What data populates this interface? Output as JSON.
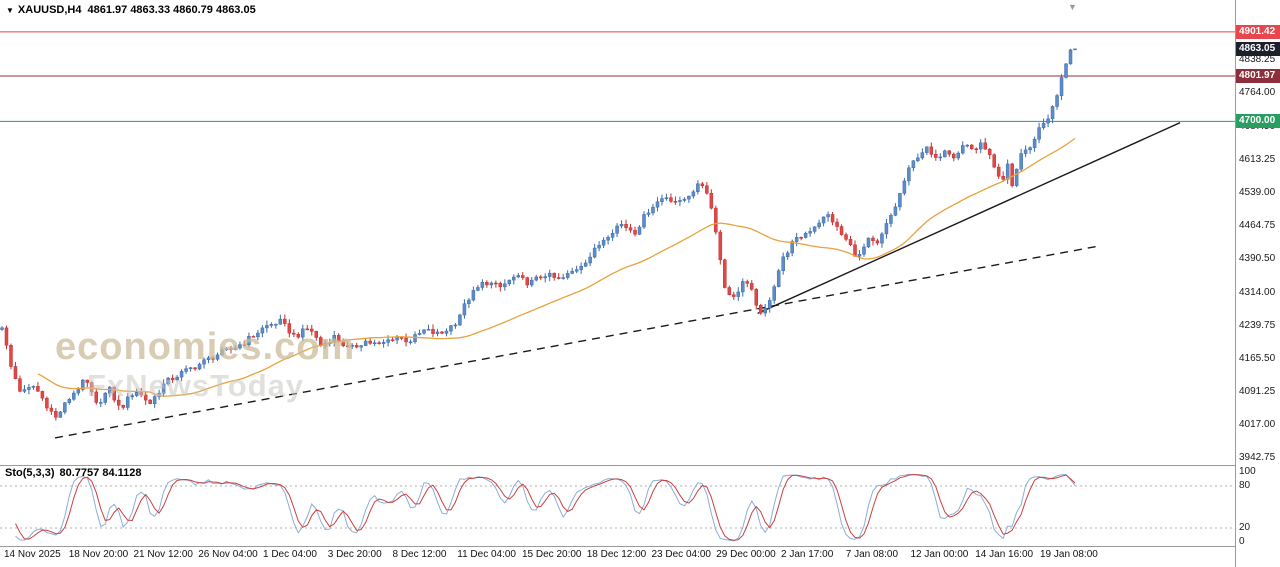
{
  "icons": {
    "dropdown": "▼",
    "shift_marker": "▼"
  },
  "header": {
    "symbol": "XAUUSD,H4",
    "ohlc": "4861.97 4863.33 4860.79 4863.05"
  },
  "watermark": {
    "line1": "economies.com",
    "line2": "FxNewsToday"
  },
  "indicator": {
    "label": "Sto(5,3,3)",
    "values": "80.7757 84.1128"
  },
  "chart_data": {
    "type": "candlestick",
    "symbol": "XAUUSD",
    "timeframe": "H4",
    "title": "XAUUSD,H4",
    "current": {
      "open": 4861.97,
      "high": 4863.33,
      "low": 4860.79,
      "close": 4863.05
    },
    "ylim": [
      3942.75,
      4955
    ],
    "y_ticks": [
      4838.25,
      4764.0,
      4687.5,
      4613.25,
      4539.0,
      4464.75,
      4390.5,
      4314.0,
      4239.75,
      4165.5,
      4091.25,
      4017.0,
      3942.75
    ],
    "x_labels": [
      "14 Nov 2025",
      "18 Nov 20:00",
      "21 Nov 12:00",
      "26 Nov 04:00",
      "1 Dec 04:00",
      "3 Dec 20:00",
      "8 Dec 12:00",
      "11 Dec 04:00",
      "15 Dec 20:00",
      "18 Dec 12:00",
      "23 Dec 04:00",
      "29 Dec 00:00",
      "2 Jan 17:00",
      "7 Jan 08:00",
      "12 Jan 00:00",
      "14 Jan 16:00",
      "19 Jan 08:00"
    ],
    "price_lines": [
      {
        "price": 4901.42,
        "label": "4901.42",
        "line_color": "#e6474f",
        "badge_color": "#e6474f"
      },
      {
        "price": 4863.05,
        "label": "4863.05",
        "line_color": null,
        "badge_color": "#1d1f2a",
        "is_current": true
      },
      {
        "price": 4801.97,
        "label": "4801.97",
        "line_color": "#8c2f3a",
        "badge_color": "#8c2f3a"
      },
      {
        "price": 4700.0,
        "label": "4700.00",
        "line_color": "#2a9e62",
        "badge_color": "#2a9e62"
      }
    ],
    "trendlines": [
      {
        "style": "dashed",
        "t1": 0.0445,
        "p1": 3988,
        "t2": 0.89,
        "p2": 4420
      },
      {
        "style": "solid",
        "t1": 0.613,
        "p1": 4268,
        "t2": 0.9547,
        "p2": 4697
      }
    ],
    "moving_average": {
      "type": "SMA",
      "period": 34,
      "color": "#e8a23c"
    },
    "sub_chart": {
      "type": "stochastic",
      "label": "Sto(5,3,3)",
      "params": [
        5,
        3,
        3
      ],
      "levels": [
        100,
        80,
        20,
        0
      ],
      "level_lines": [
        80,
        20
      ],
      "current_k": 80.7757,
      "current_d": 84.1128,
      "k_color": "#8aaed6",
      "d_color": "#cc3f3f"
    },
    "colors": {
      "up_fill": "#5e8cc8",
      "up_stroke": "#3a6ca8",
      "down_fill": "#e04848",
      "down_stroke": "#c23030",
      "grid": "#b0b0b0",
      "separator": "#9a9a9a",
      "trendline": "#1a1a1a"
    },
    "trajectory": [
      [
        0,
        4240
      ],
      [
        0.008,
        4150
      ],
      [
        0.018,
        4088
      ],
      [
        0.03,
        4105
      ],
      [
        0.05,
        4032
      ],
      [
        0.065,
        4085
      ],
      [
        0.078,
        4118
      ],
      [
        0.088,
        4062
      ],
      [
        0.1,
        4098
      ],
      [
        0.11,
        4052
      ],
      [
        0.124,
        4096
      ],
      [
        0.138,
        4066
      ],
      [
        0.152,
        4112
      ],
      [
        0.166,
        4132
      ],
      [
        0.185,
        4155
      ],
      [
        0.2,
        4175
      ],
      [
        0.213,
        4186
      ],
      [
        0.227,
        4205
      ],
      [
        0.245,
        4238
      ],
      [
        0.259,
        4250
      ],
      [
        0.273,
        4216
      ],
      [
        0.287,
        4236
      ],
      [
        0.297,
        4196
      ],
      [
        0.31,
        4216
      ],
      [
        0.324,
        4186
      ],
      [
        0.338,
        4206
      ],
      [
        0.352,
        4196
      ],
      [
        0.366,
        4216
      ],
      [
        0.38,
        4206
      ],
      [
        0.394,
        4230
      ],
      [
        0.408,
        4220
      ],
      [
        0.422,
        4246
      ],
      [
        0.436,
        4306
      ],
      [
        0.45,
        4340
      ],
      [
        0.464,
        4326
      ],
      [
        0.478,
        4350
      ],
      [
        0.492,
        4336
      ],
      [
        0.506,
        4356
      ],
      [
        0.52,
        4342
      ],
      [
        0.534,
        4366
      ],
      [
        0.548,
        4396
      ],
      [
        0.562,
        4440
      ],
      [
        0.576,
        4470
      ],
      [
        0.59,
        4452
      ],
      [
        0.604,
        4506
      ],
      [
        0.618,
        4532
      ],
      [
        0.632,
        4516
      ],
      [
        0.646,
        4550
      ],
      [
        0.655,
        4560
      ],
      [
        0.664,
        4478
      ],
      [
        0.673,
        4330
      ],
      [
        0.682,
        4302
      ],
      [
        0.691,
        4342
      ],
      [
        0.7,
        4312
      ],
      [
        0.708,
        4256
      ],
      [
        0.717,
        4312
      ],
      [
        0.726,
        4382
      ],
      [
        0.735,
        4422
      ],
      [
        0.744,
        4440
      ],
      [
        0.753,
        4456
      ],
      [
        0.762,
        4476
      ],
      [
        0.771,
        4490
      ],
      [
        0.78,
        4452
      ],
      [
        0.789,
        4426
      ],
      [
        0.798,
        4392
      ],
      [
        0.807,
        4432
      ],
      [
        0.816,
        4422
      ],
      [
        0.825,
        4470
      ],
      [
        0.834,
        4516
      ],
      [
        0.843,
        4580
      ],
      [
        0.852,
        4620
      ],
      [
        0.861,
        4640
      ],
      [
        0.87,
        4612
      ],
      [
        0.879,
        4640
      ],
      [
        0.888,
        4622
      ],
      [
        0.897,
        4650
      ],
      [
        0.906,
        4636
      ],
      [
        0.915,
        4650
      ],
      [
        0.921,
        4618
      ],
      [
        0.927,
        4578
      ],
      [
        0.932,
        4556
      ],
      [
        0.937,
        4602
      ],
      [
        0.942,
        4548
      ],
      [
        0.947,
        4612
      ],
      [
        0.952,
        4640
      ],
      [
        0.957,
        4630
      ],
      [
        0.962,
        4662
      ],
      [
        0.968,
        4692
      ],
      [
        0.973,
        4702
      ],
      [
        0.978,
        4722
      ],
      [
        0.983,
        4755
      ],
      [
        0.988,
        4800
      ],
      [
        0.993,
        4845
      ],
      [
        0.997,
        4872
      ],
      [
        1,
        4863.05
      ]
    ]
  }
}
